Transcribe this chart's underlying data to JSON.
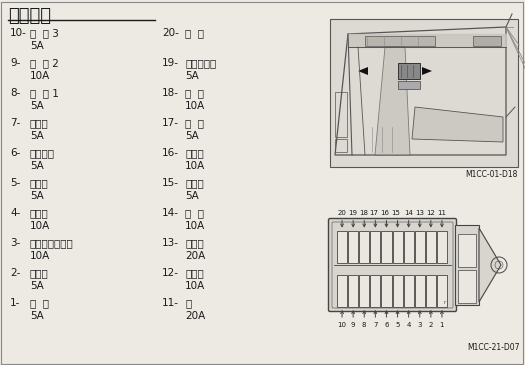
{
  "title": "保险丝盒",
  "bg_color": "#ede9e3",
  "text_color": "#1a1a1a",
  "left_items": [
    {
      "num": "10-",
      "name": "选  购 3",
      "amp": "5A"
    },
    {
      "num": "9-",
      "name": "选  购 2",
      "amp": "10A"
    },
    {
      "num": "8-",
      "name": "选  购 1",
      "amp": "5A"
    },
    {
      "num": "7-",
      "name": "空调机",
      "amp": "5A"
    },
    {
      "num": "6-",
      "name": "电源接通",
      "amp": "5A"
    },
    {
      "num": "5-",
      "name": "开关盒",
      "amp": "5A"
    },
    {
      "num": "4-",
      "name": "电磁阀",
      "amp": "10A"
    },
    {
      "num": "3-",
      "name": "发动机控制马达",
      "amp": "10A"
    },
    {
      "num": "2-",
      "name": "控制器",
      "amp": "5A"
    },
    {
      "num": "1-",
      "name": "后  备",
      "amp": "5A"
    }
  ],
  "right_items": [
    {
      "num": "20-",
      "name": "备  用",
      "amp": ""
    },
    {
      "num": "19-",
      "name": "辉光继电器",
      "amp": "5A"
    },
    {
      "num": "18-",
      "name": "补  助",
      "amp": "10A"
    },
    {
      "num": "17-",
      "name": "室  灯",
      "amp": "5A"
    },
    {
      "num": "16-",
      "name": "点烟器",
      "amp": "10A"
    },
    {
      "num": "15-",
      "name": "收音机",
      "amp": "5A"
    },
    {
      "num": "14-",
      "name": "喇  叭",
      "amp": "10A"
    },
    {
      "num": "13-",
      "name": "加热器",
      "amp": "20A"
    },
    {
      "num": "12-",
      "name": "刮水器",
      "amp": "10A"
    },
    {
      "num": "11-",
      "name": "灯",
      "amp": "20A"
    }
  ],
  "ref1": "M1CC-01-D18",
  "ref2": "M1CC-21-D07",
  "font_size_title": 13,
  "font_size_text": 7.5,
  "font_size_ref": 5.5
}
